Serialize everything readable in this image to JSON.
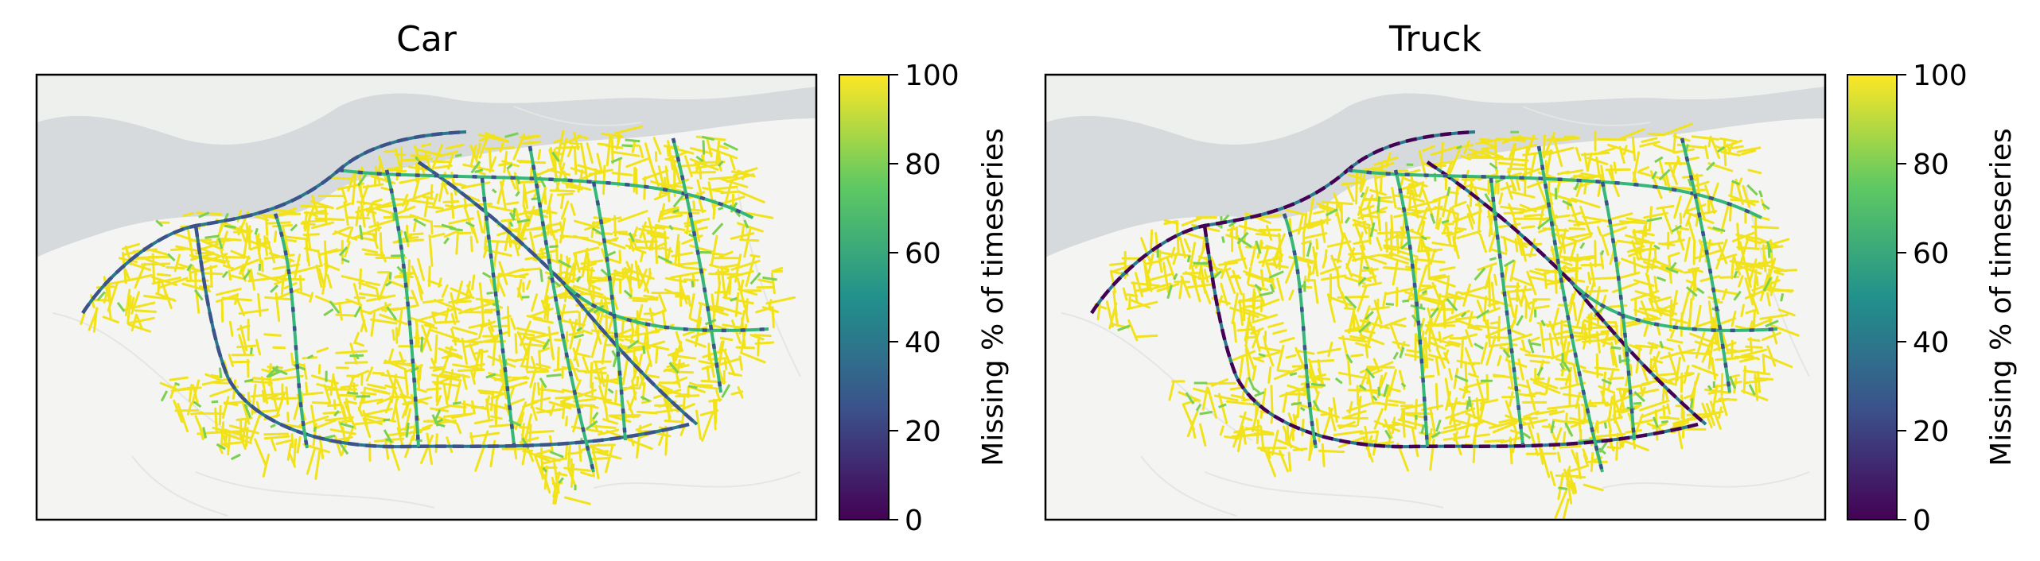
{
  "panels": [
    {
      "title": "Car",
      "variant": "car"
    },
    {
      "title": "Truck",
      "variant": "truck"
    }
  ],
  "colorbar": {
    "label": "Missing % of timeseries",
    "ticks": [
      "0",
      "20",
      "40",
      "60",
      "80",
      "100"
    ],
    "range": [
      0,
      100
    ],
    "colormap": "viridis",
    "stops": [
      "#440154",
      "#3b528b",
      "#21918c",
      "#5ec962",
      "#fde725"
    ]
  },
  "basemap": {
    "land": "#f4f5f3",
    "water": "#d6dadc",
    "roads_light": "#e6e8e6"
  }
}
